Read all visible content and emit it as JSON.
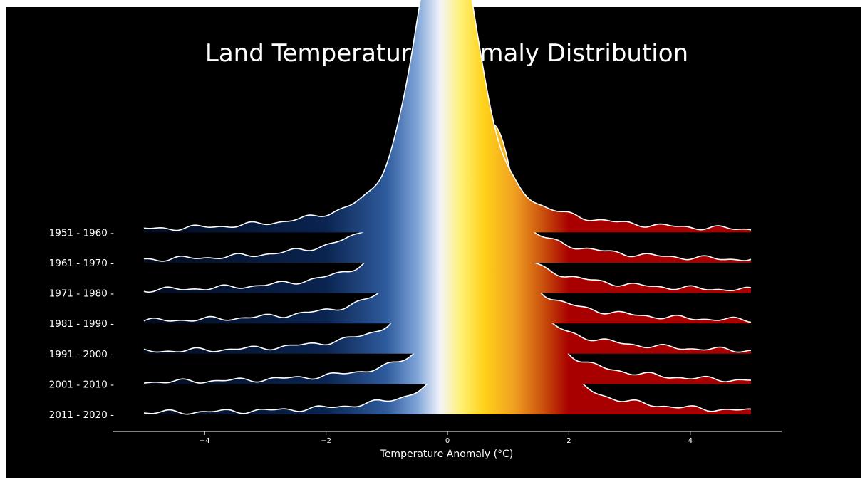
{
  "chart_data": {
    "type": "ridgeline",
    "title": "Land Temperature Anomaly Distribution",
    "xlabel": "Temperature Anomaly (°C)",
    "ylabel": "",
    "xlim": [
      -5,
      5
    ],
    "x_ticks": [
      -4,
      -2,
      0,
      2,
      4
    ],
    "x_tick_labels": [
      "−4",
      "−2",
      "0",
      "2",
      "4"
    ],
    "background": "#000000",
    "line_color": "#ffffff",
    "fill_colormap": [
      {
        "x": -5,
        "color": "#020b1f"
      },
      {
        "x": -2,
        "color": "#0a2450"
      },
      {
        "x": -1,
        "color": "#2f5c9e"
      },
      {
        "x": -0.5,
        "color": "#7fa4d8"
      },
      {
        "x": -0.12,
        "color": "#f2f4fb"
      },
      {
        "x": 0.2,
        "color": "#fff27a"
      },
      {
        "x": 0.6,
        "color": "#ffd21a"
      },
      {
        "x": 1.1,
        "color": "#f0a020"
      },
      {
        "x": 1.6,
        "color": "#c84c0c"
      },
      {
        "x": 2.0,
        "color": "#a80000"
      },
      {
        "x": 5,
        "color": "#a80000"
      }
    ],
    "series": [
      {
        "name": "1951 - 1960",
        "mean": -0.02,
        "peak_density": 0.91
      },
      {
        "name": "1961 - 1970",
        "mean": 0.0,
        "peak_density": 0.87
      },
      {
        "name": "1971 - 1980",
        "mean": 0.02,
        "peak_density": 0.82
      },
      {
        "name": "1981 - 1990",
        "mean": 0.22,
        "peak_density": 0.78
      },
      {
        "name": "1991 - 2000",
        "mean": 0.38,
        "peak_density": 0.75
      },
      {
        "name": "2001 - 2010",
        "mean": 0.72,
        "peak_density": 0.71
      },
      {
        "name": "2011 - 2020",
        "mean": 0.95,
        "peak_density": 0.66
      }
    ]
  }
}
